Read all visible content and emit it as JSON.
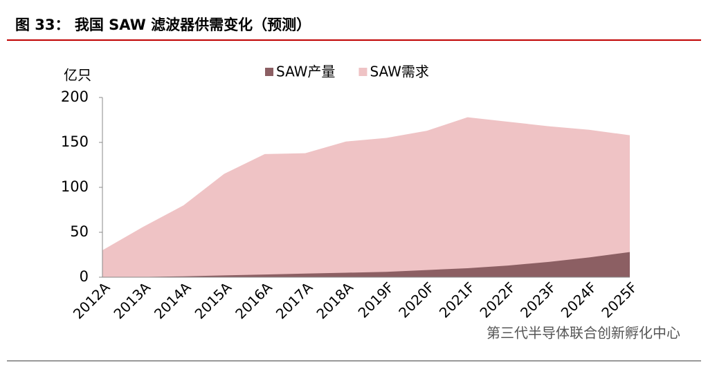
{
  "chart_data": {
    "type": "area",
    "title": "图 33：  我国 SAW 滤波器供需变化（预测）",
    "y_label": "亿只",
    "categories": [
      "2012A",
      "2013A",
      "2014A",
      "2015A",
      "2016A",
      "2017A",
      "2018A",
      "2019F",
      "2020F",
      "2021F",
      "2022F",
      "2023F",
      "2024F",
      "2025F"
    ],
    "series": [
      {
        "name": "SAW产量",
        "color": "#8c5f63",
        "values": [
          0,
          0.3,
          1,
          2,
          3,
          4,
          5,
          6,
          8,
          10,
          13,
          17,
          22,
          28
        ]
      },
      {
        "name": "SAW需求",
        "color": "#efc3c5",
        "values": [
          30,
          56,
          80,
          115,
          137,
          138,
          151,
          155,
          163,
          178,
          173,
          168,
          164,
          158
        ]
      }
    ],
    "ylim": [
      0,
      200
    ],
    "yticks": [
      0,
      50,
      100,
      150,
      200
    ],
    "grid": false,
    "watermark": "第三代半导体联合创新孵化中心"
  }
}
